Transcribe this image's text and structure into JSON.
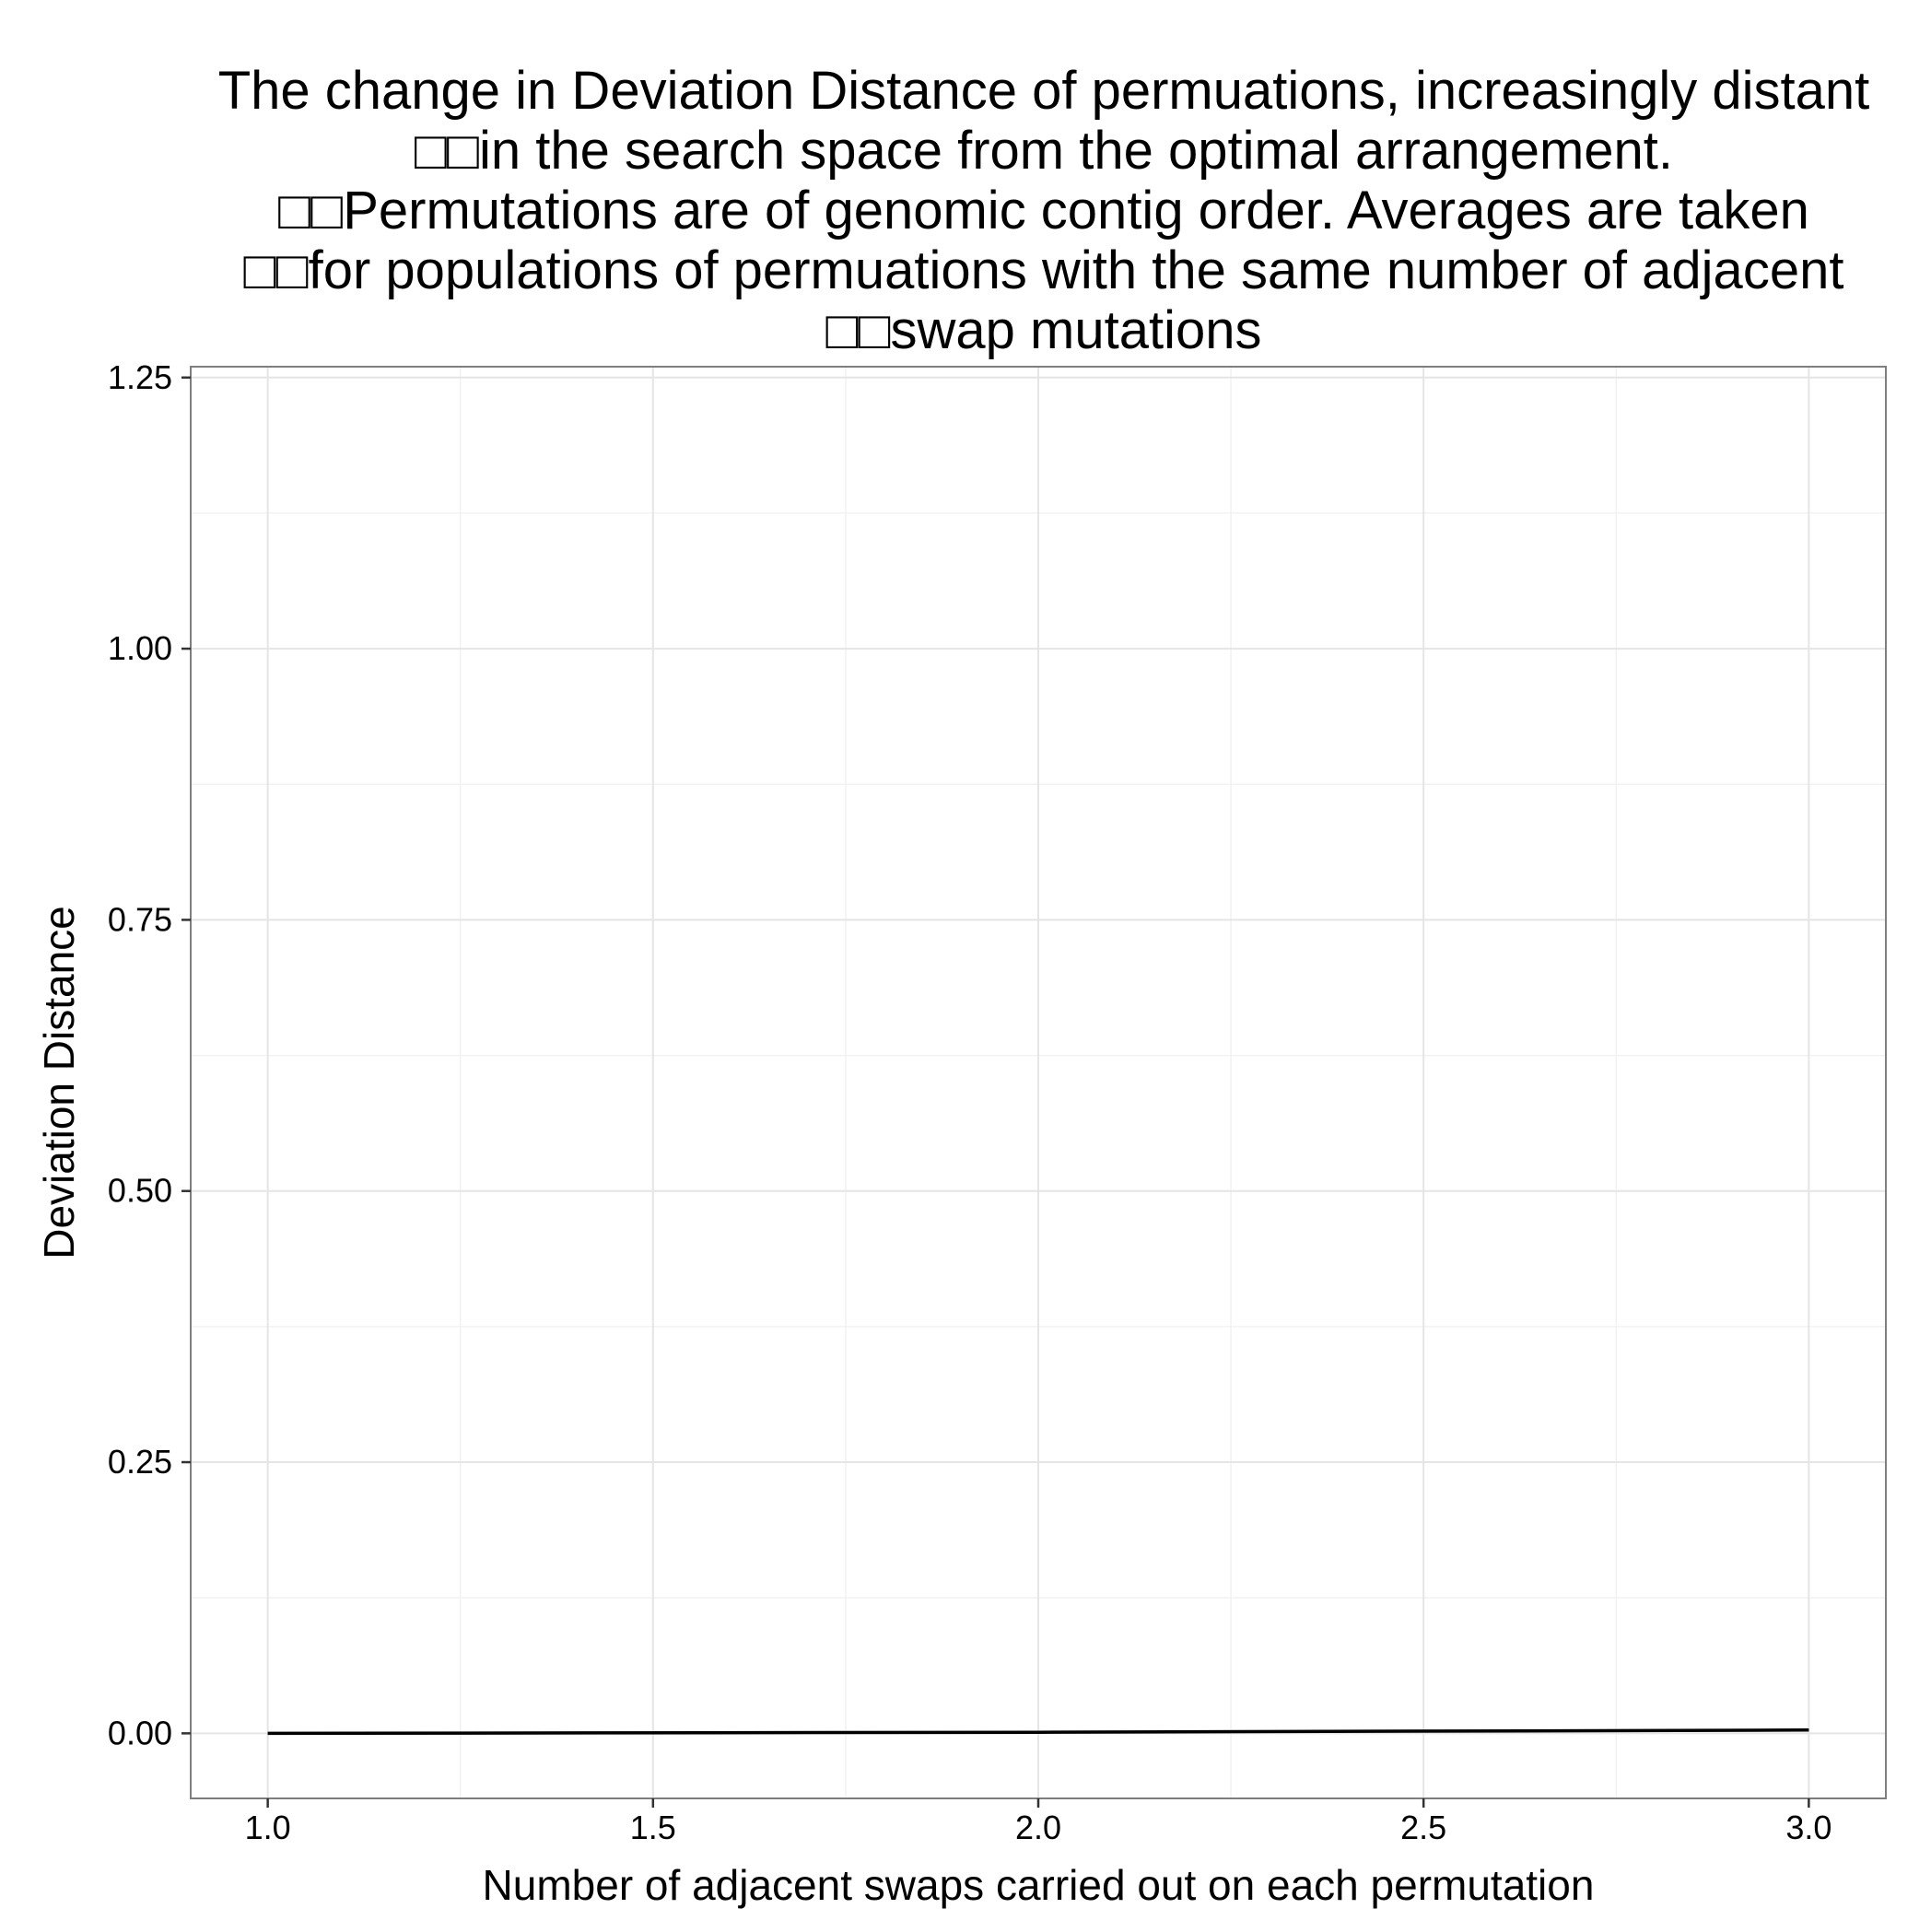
{
  "chart_data": {
    "type": "line",
    "title_lines": [
      "The change in Deviation Distance of permuations, increasingly distant",
      "□□in the search space from the optimal arrangement.",
      "□□Permutations are of genomic contig order. Averages are taken",
      "□□for populations of permuations with the same number of adjacent",
      "□□swap mutations"
    ],
    "xlabel": "Number of adjacent swaps carried out on each permutation",
    "ylabel": "Deviation Distance",
    "xlim": [
      0.9,
      3.1
    ],
    "ylim": [
      -0.06,
      1.26
    ],
    "x_ticks": [
      1.0,
      1.5,
      2.0,
      2.5,
      3.0
    ],
    "x_tick_labels": [
      "1.0",
      "1.5",
      "2.0",
      "2.5",
      "3.0"
    ],
    "y_ticks": [
      0.0,
      0.25,
      0.5,
      0.75,
      1.0,
      1.25
    ],
    "y_tick_labels": [
      "0.00",
      "0.25",
      "0.50",
      "0.75",
      "1.00",
      "1.25"
    ],
    "grid": true,
    "series": [
      {
        "x": [
          1,
          2,
          3
        ],
        "values": [
          0.0,
          0.001,
          0.003
        ],
        "color": "#000000"
      }
    ],
    "colors": {
      "background": "#ffffff",
      "grid_major": "#e5e5e5",
      "grid_minor": "#f2f2f2",
      "panel_border": "#7f7f7f",
      "axis_ticks": "#333333"
    }
  }
}
